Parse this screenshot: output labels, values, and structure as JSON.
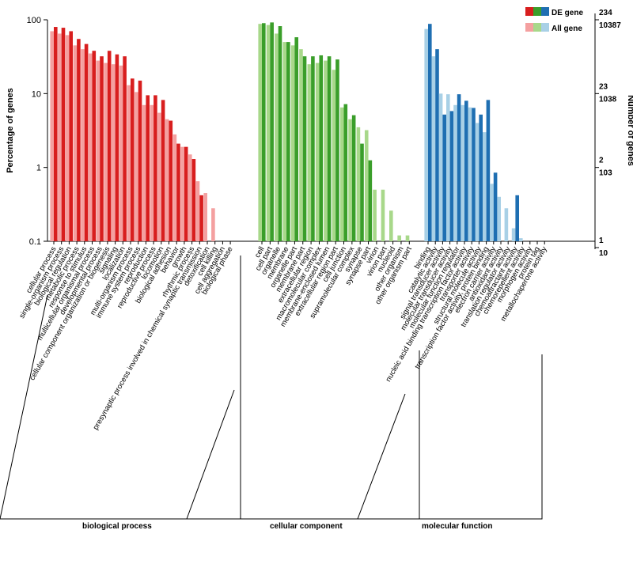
{
  "chart_data": {
    "type": "bar",
    "scale": "log",
    "ylabel": "Percentage of genes",
    "ylabel_right": "Number of genes",
    "ylim": [
      0.1,
      100
    ],
    "y_ticks": [
      "100",
      "10",
      "1",
      "0.1"
    ],
    "right_ticks": [
      {
        "at": 100,
        "de": "234",
        "all": "10387"
      },
      {
        "at": 10,
        "de": "23",
        "all": "1038"
      },
      {
        "at": 1,
        "de": "2",
        "all": "103"
      },
      {
        "at": 0.1,
        "de": "1",
        "all": "10"
      }
    ],
    "legend": {
      "de": "DE gene",
      "all": "All gene",
      "position": "top-right"
    },
    "groups": [
      {
        "name": "biological process",
        "colors": {
          "all": "#f4a0a0",
          "de": "#d81e1e"
        },
        "categories": [
          "cellular process",
          "single-organism process",
          "biological regulation",
          "metabolic process",
          "response to stimulus",
          "multicellular organismal process",
          "developmental process",
          "cellular component organization or biogenesis",
          "signaling",
          "localization",
          "multi-organism process",
          "immune system process",
          "reproduction",
          "reproductive process",
          "locomotion",
          "biological adhesion",
          "behavior",
          "growth",
          "rhythmic process",
          "presynaptic process involved in chemical synaptic transmission",
          "detoxification",
          "cell killing",
          "cell aggregation",
          "biological phase"
        ],
        "all": [
          70,
          65,
          62,
          45,
          40,
          35,
          28,
          26,
          25,
          24,
          13,
          10.5,
          7,
          7,
          5.5,
          4.5,
          2.8,
          1.9,
          1.5,
          0.65,
          0.45,
          0.28,
          0,
          0
        ],
        "de": [
          80,
          78,
          70,
          55,
          47,
          38,
          32,
          38,
          34,
          32,
          16,
          15,
          9.5,
          9.5,
          8.2,
          4.3,
          2.1,
          1.9,
          1.3,
          0.42,
          0,
          0,
          0,
          0
        ]
      },
      {
        "name": "cellular component",
        "colors": {
          "all": "#a8d88a",
          "de": "#3a9e2a"
        },
        "categories": [
          "cell",
          "cell part",
          "organelle",
          "membrane",
          "organelle part",
          "membrane part",
          "extracellular region",
          "macromolecular complex",
          "membrane-enclosed lumen",
          "extracellular region part",
          "cell junction",
          "supramolecular complex",
          "synapse",
          "synapse part",
          "virion",
          "virion part",
          "nucleoid",
          "other organism",
          "other organism part"
        ],
        "all": [
          88,
          85,
          65,
          50,
          45,
          40,
          25,
          26,
          28,
          21,
          6.5,
          4.5,
          3.5,
          3.2,
          0.5,
          0.5,
          0.26,
          0.12,
          0.12
        ],
        "de": [
          90,
          92,
          82,
          50,
          58,
          32,
          32,
          33,
          32,
          29,
          7.2,
          5.1,
          2.1,
          1.25,
          0,
          0,
          0,
          0,
          0
        ]
      },
      {
        "name": "molecular function",
        "colors": {
          "all": "#a8d0e6",
          "de": "#1f6fb2"
        },
        "categories": [
          "binding",
          "catalytic activity",
          "signal transducer activity",
          "molecular transducer activity",
          "molecular function regulator",
          "nucleic acid binding transcription factor activity",
          "transporter activity",
          "structural molecule activity",
          "transcription factor activity, protein binding",
          "electron carrier activity",
          "antioxidant activity",
          "translation regulator activity",
          "chemoattractant activity",
          "chemorepellent activity",
          "morphogen activity",
          "protein tag",
          "metallochaperone activity"
        ],
        "all": [
          75,
          32,
          10,
          9.8,
          7,
          7,
          6.5,
          4,
          3,
          0.6,
          0.4,
          0.28,
          0.15,
          0.11,
          0,
          0,
          0
        ],
        "de": [
          88,
          40,
          5.2,
          5.8,
          9.8,
          8,
          6.4,
          5.2,
          8.2,
          0.85,
          0,
          0,
          0.42,
          0,
          0,
          0,
          0
        ]
      }
    ]
  }
}
